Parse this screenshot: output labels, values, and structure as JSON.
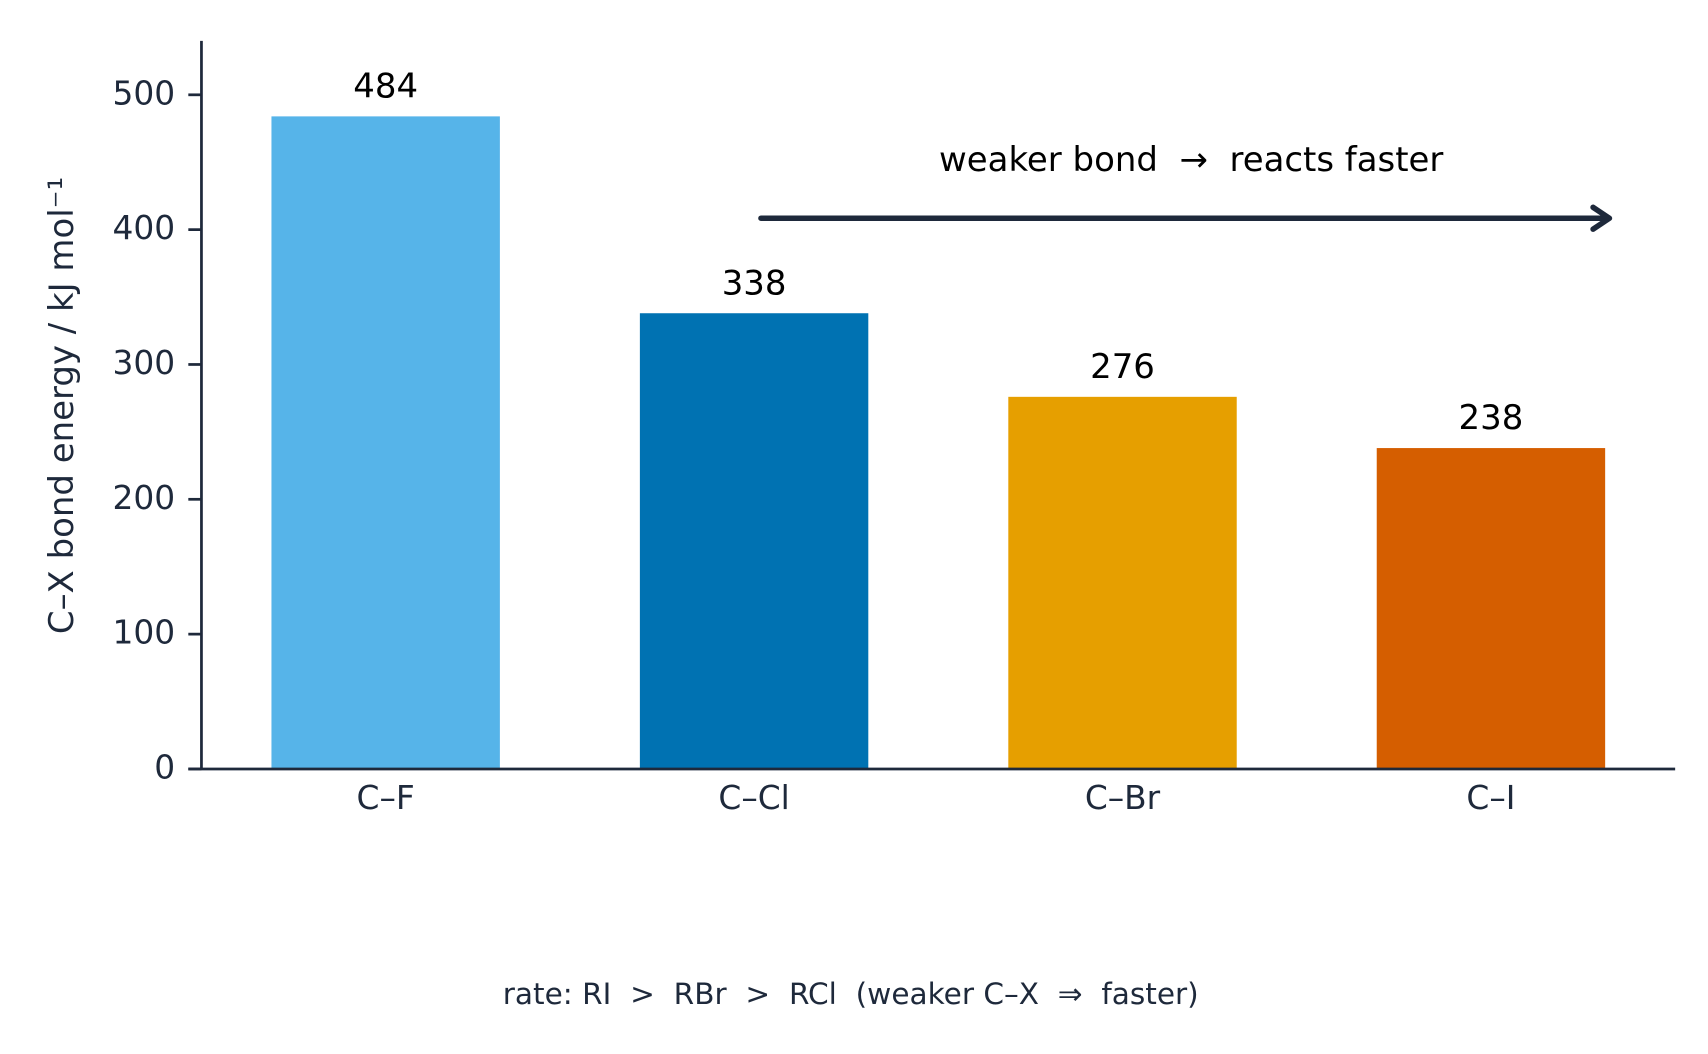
{
  "chart_data": {
    "type": "bar",
    "categories": [
      "C–F",
      "C–Cl",
      "C–Br",
      "C–I"
    ],
    "values": [
      484,
      338,
      276,
      238
    ],
    "colors": [
      "#56B4E9",
      "#0072B2",
      "#E69F00",
      "#D55E00"
    ],
    "ylim": [
      0,
      540
    ],
    "yticks": [
      0,
      100,
      200,
      300,
      400,
      500
    ],
    "ylabel": "C–X bond energy / kJ mol⁻¹",
    "annotation": "weaker bond  →  reacts faster",
    "footnote": "rate: RI  >  RBr  >  RCl  (weaker C–X  ⇒  faster)",
    "grid": false
  }
}
